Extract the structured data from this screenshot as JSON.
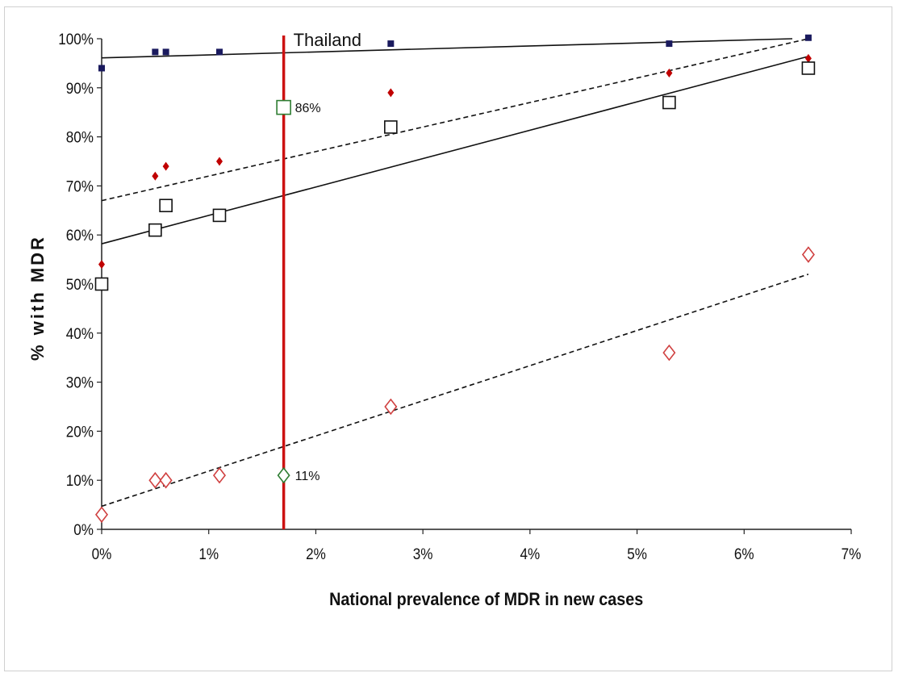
{
  "chart_data": {
    "type": "scatter",
    "title": "",
    "xlabel": "National prevalence of MDR in new cases",
    "ylabel": "% with MDR",
    "xlim": [
      0,
      7
    ],
    "ylim": [
      0,
      100
    ],
    "x_ticks": [
      "0%",
      "1%",
      "2%",
      "3%",
      "4%",
      "5%",
      "6%",
      "7%"
    ],
    "y_ticks": [
      "0%",
      "10%",
      "20%",
      "30%",
      "40%",
      "50%",
      "60%",
      "70%",
      "80%",
      "90%",
      "100%"
    ],
    "grid": false,
    "legend": "none",
    "series": [
      {
        "marker": "filled-square",
        "color": "#1a1a5e",
        "points": [
          [
            0,
            94
          ],
          [
            0.5,
            97.3
          ],
          [
            0.6,
            97.3
          ],
          [
            1.1,
            97.3
          ],
          [
            2.7,
            99
          ],
          [
            5.3,
            99
          ],
          [
            6.6,
            100.2
          ]
        ],
        "trendline": {
          "x": [
            0,
            6.45
          ],
          "y": [
            96.1,
            100
          ],
          "style": "solid"
        }
      },
      {
        "marker": "filled-diamond",
        "color": "#c00000",
        "points": [
          [
            0,
            54
          ],
          [
            0.5,
            72
          ],
          [
            0.6,
            74
          ],
          [
            1.1,
            75
          ],
          [
            2.7,
            89
          ],
          [
            5.3,
            93
          ],
          [
            6.6,
            96
          ]
        ],
        "trendline": {
          "x": [
            0,
            6.6
          ],
          "y": [
            67,
            100
          ],
          "style": "dashed"
        }
      },
      {
        "marker": "open-square",
        "color": "#111111",
        "points": [
          [
            0,
            50
          ],
          [
            0.5,
            61
          ],
          [
            0.6,
            66
          ],
          [
            1.1,
            64
          ],
          [
            2.7,
            82
          ],
          [
            5.3,
            87
          ],
          [
            6.6,
            94
          ]
        ],
        "trendline": {
          "x": [
            0,
            6.6
          ],
          "y": [
            58.2,
            96.4
          ],
          "style": "solid"
        }
      },
      {
        "marker": "open-diamond",
        "color": "#d04040",
        "points": [
          [
            0,
            3
          ],
          [
            0.5,
            10
          ],
          [
            0.6,
            10
          ],
          [
            1.1,
            11
          ],
          [
            2.7,
            25
          ],
          [
            5.3,
            36
          ],
          [
            6.6,
            56
          ]
        ],
        "trendline": {
          "x": [
            0,
            6.6
          ],
          "y": [
            4.7,
            52
          ],
          "style": "dashed"
        }
      }
    ],
    "reference_line": {
      "x": 1.7,
      "label": "Thailand",
      "color": "#cc1111"
    },
    "highlights": [
      {
        "x": 1.7,
        "y": 86,
        "marker": "open-square",
        "color": "#2e7d32",
        "label": "86%"
      },
      {
        "x": 1.7,
        "y": 11,
        "marker": "open-diamond",
        "color": "#2e7d32",
        "label": "11%"
      }
    ]
  }
}
